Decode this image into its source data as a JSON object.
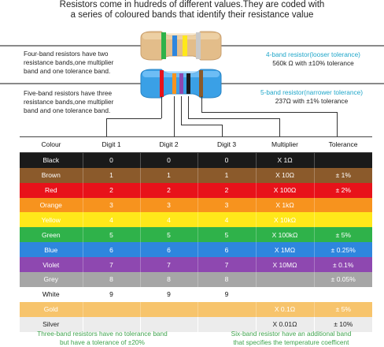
{
  "title_line1": "Resistors come in hudreds of different values.They are coded with",
  "title_line2": "a series of coloured bands that identify their resistance value",
  "left_note_4band": [
    "Four-band resistors have two",
    "resistance bands,one multiplier",
    "band and one tolerance band."
  ],
  "left_note_5band": [
    "Five-band resistors have three",
    "resistance bands,one multiplier",
    "band and one tolerance band."
  ],
  "right_note_4band": {
    "title": "4-band resistor(looser tolerance)",
    "value": "560k Ω with ±10% tolerance"
  },
  "right_note_5band": {
    "title": "5-band resistor(narrower tolerance)",
    "value": "237Ω with ±1% tolerance"
  },
  "colors": {
    "accent": "#1fa6c9",
    "footnote": "#3fa34d"
  },
  "table": {
    "headers": [
      "Colour",
      "Digit 1",
      "Digit 2",
      "Digit 3",
      "Multiplier",
      "Tolerance"
    ],
    "rows": [
      {
        "name": "Black",
        "d1": "0",
        "d2": "0",
        "d3": "0",
        "mult": "X 1Ω",
        "tol": "",
        "bg": "#1a1a1a",
        "fg": "#ffffff"
      },
      {
        "name": "Brown",
        "d1": "1",
        "d2": "1",
        "d3": "1",
        "mult": "X 10Ω",
        "tol": "± 1%",
        "bg": "#8b5a2b",
        "fg": "#ffffff"
      },
      {
        "name": "Red",
        "d1": "2",
        "d2": "2",
        "d3": "2",
        "mult": "X 100Ω",
        "tol": "± 2%",
        "bg": "#e8121a",
        "fg": "#ffffff"
      },
      {
        "name": "Orange",
        "d1": "3",
        "d2": "3",
        "d3": "3",
        "mult": "X 1kΩ",
        "tol": "",
        "bg": "#f7931e",
        "fg": "#ffffff"
      },
      {
        "name": "Yellow",
        "d1": "4",
        "d2": "4",
        "d3": "4",
        "mult": "X 10kΩ",
        "tol": "",
        "bg": "#ffe81a",
        "fg": "#ffffff"
      },
      {
        "name": "Green",
        "d1": "5",
        "d2": "5",
        "d3": "5",
        "mult": "X 100kΩ",
        "tol": "± 5%",
        "bg": "#2fb24a",
        "fg": "#ffffff"
      },
      {
        "name": "Blue",
        "d1": "6",
        "d2": "6",
        "d3": "6",
        "mult": "X 1MΩ",
        "tol": "± 0.25%",
        "bg": "#2e86de",
        "fg": "#ffffff"
      },
      {
        "name": "Violet",
        "d1": "7",
        "d2": "7",
        "d3": "7",
        "mult": "X 10MΩ",
        "tol": "± 0.1%",
        "bg": "#8e48b0",
        "fg": "#ffffff"
      },
      {
        "name": "Grey",
        "d1": "8",
        "d2": "8",
        "d3": "8",
        "mult": "",
        "tol": "± 0.05%",
        "bg": "#a6a6a6",
        "fg": "#ffffff"
      },
      {
        "name": "White",
        "d1": "9",
        "d2": "9",
        "d3": "9",
        "mult": "",
        "tol": "",
        "bg": "#ffffff",
        "fg": "#111111"
      },
      {
        "name": "Gold",
        "d1": "",
        "d2": "",
        "d3": "",
        "mult": "X 0.1Ω",
        "tol": "± 5%",
        "bg": "#f7c46c",
        "fg": "#ffffff"
      },
      {
        "name": "Silver",
        "d1": "",
        "d2": "",
        "d3": "",
        "mult": "X 0.01Ω",
        "tol": "± 10%",
        "bg": "#ececec",
        "fg": "#222222"
      }
    ]
  },
  "foot_left": [
    "Three-band resistors have no tolerance band",
    "but have a tolerance of ±20%"
  ],
  "foot_right": [
    "Six-band resistor have an additional band",
    "that specifies the temperature coefficent"
  ]
}
